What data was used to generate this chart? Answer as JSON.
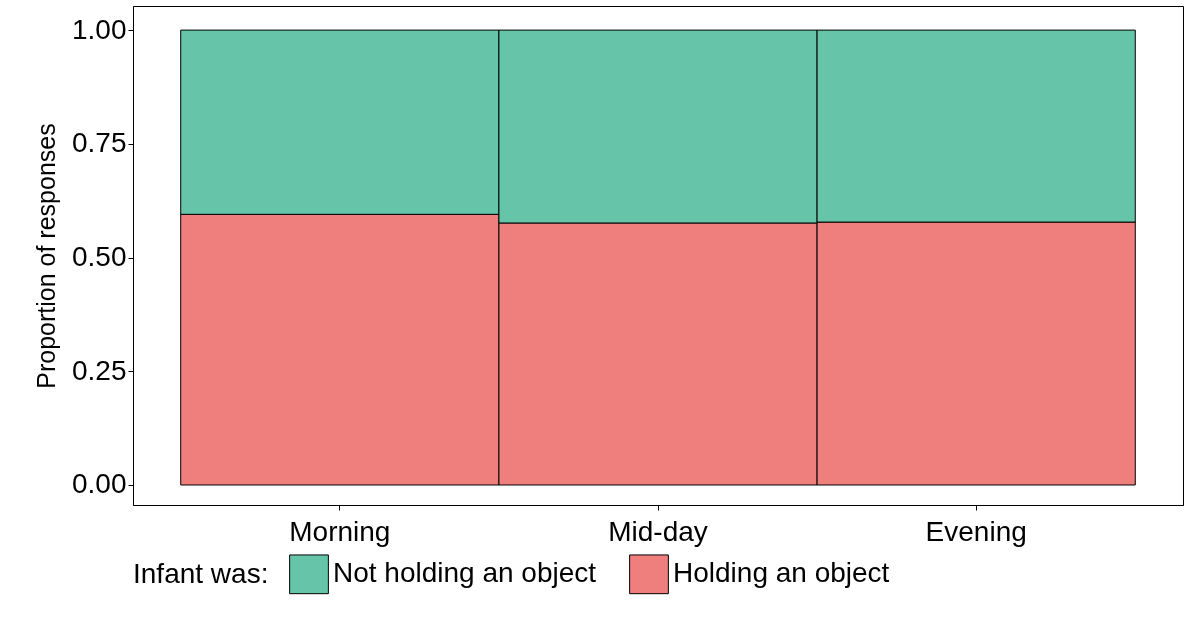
{
  "chart_data": {
    "type": "bar",
    "stacked": true,
    "ylabel": "Proportion of responses",
    "legend_title": "Infant was:",
    "legend": "bottom",
    "grid": false,
    "categories": [
      "Morning",
      "Mid-day",
      "Evening"
    ],
    "series": [
      {
        "name": "Holding an object",
        "color": "#ef7f7d",
        "values": [
          0.595,
          0.576,
          0.578
        ]
      },
      {
        "name": "Not holding an object",
        "color": "#66c5a8",
        "values": [
          0.405,
          0.424,
          0.422
        ]
      }
    ],
    "ylim": [
      -0.044,
      1.053
    ],
    "yticks": [
      {
        "value": 0,
        "label": "0.00"
      },
      {
        "value": 0.25,
        "label": "0.25"
      },
      {
        "value": 0.5,
        "label": "0.50"
      },
      {
        "value": 0.75,
        "label": "0.75"
      },
      {
        "value": 1,
        "label": "1.00"
      }
    ]
  }
}
